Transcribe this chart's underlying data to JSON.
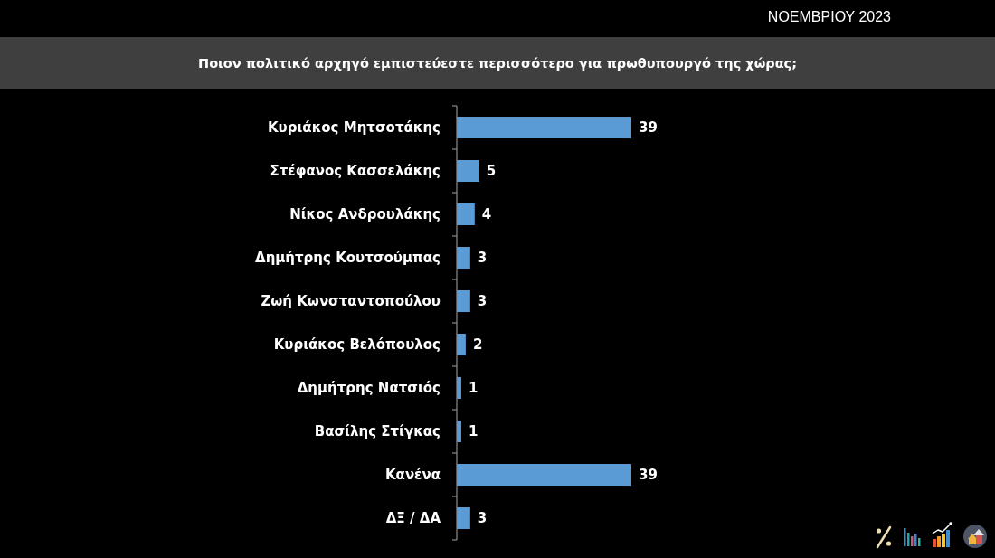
{
  "chart_data": {
    "type": "bar",
    "orientation": "horizontal",
    "title": "Ποιον πολιτικό αρχηγό εμπιστεύεστε περισσότερο για πρωθυπουργό της χώρας;",
    "subtitle": "ΝΟΕΜΒΡΙΟΥ 2023",
    "categories": [
      "Κυριάκος Μητσοτάκης",
      "Στέφανος Κασσελάκης",
      "Νίκος Ανδρουλάκης",
      "Δημήτρης Κουτσούμπας",
      "Ζωή Κωνσταντοπούλου",
      "Κυριάκος Βελόπουλος",
      "Δημήτρης Νατσιός",
      "Βασίλης Στίγκας",
      "Κανένα",
      "ΔΞ / ΔΑ"
    ],
    "values": [
      39,
      5,
      4,
      3,
      3,
      2,
      1,
      1,
      39,
      3
    ],
    "color": "#5a9bd5",
    "data_labels": true,
    "tick_labels": "y"
  }
}
